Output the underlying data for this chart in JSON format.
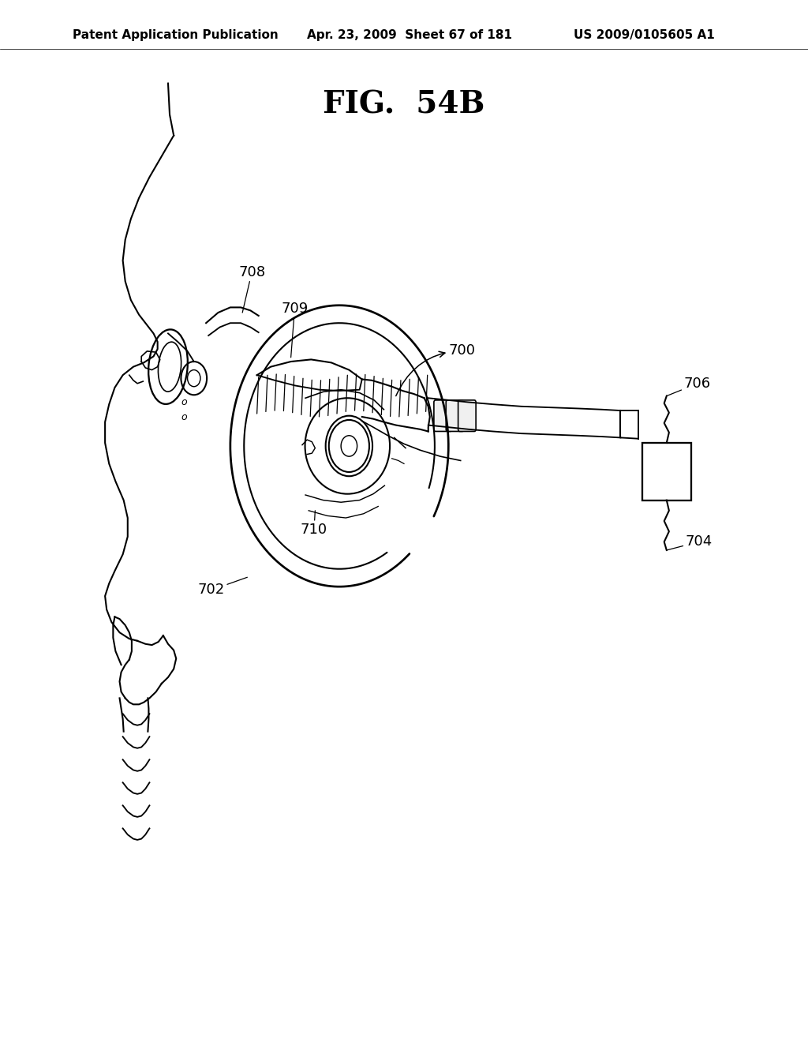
{
  "bg_color": "#ffffff",
  "title": "FIG.  54B",
  "header_left": "Patent Application Publication",
  "header_mid": "Apr. 23, 2009  Sheet 67 of 181",
  "header_right": "US 2009/0105605 A1",
  "title_fontsize": 28,
  "header_fontsize": 11,
  "label_fontsize": 13,
  "lw": 1.5
}
